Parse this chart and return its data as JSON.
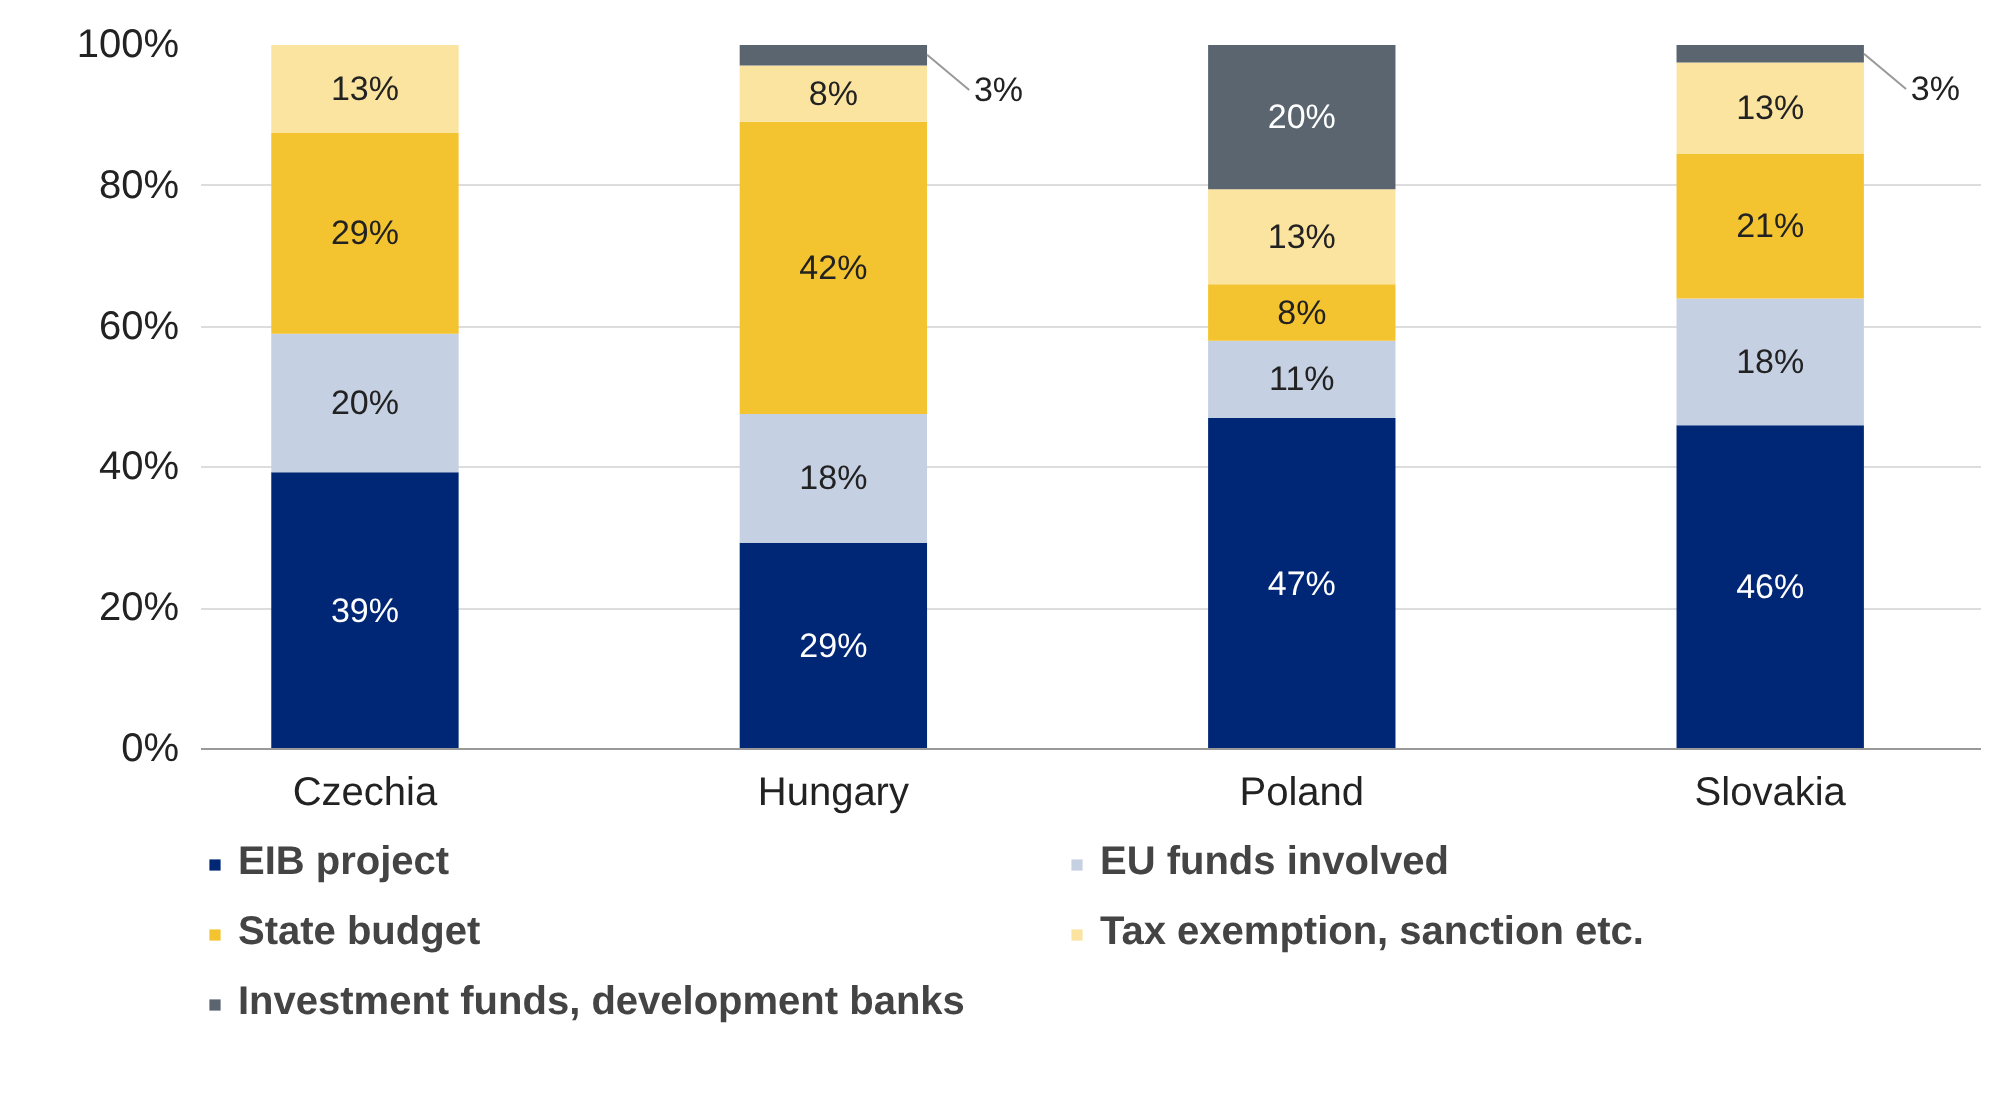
{
  "chart_data": {
    "type": "bar",
    "stacked": true,
    "categories": [
      "Czechia",
      "Hungary",
      "Poland",
      "Slovakia"
    ],
    "series": [
      {
        "name": "EIB project",
        "color": "#002776",
        "values": [
          39.3,
          29.3,
          47,
          46
        ],
        "value_labels": [
          "39%",
          "29%",
          "47%",
          "46%"
        ]
      },
      {
        "name": "EU funds involved",
        "color": "#c5d0e3",
        "values": [
          19.7,
          18.3,
          11,
          18
        ],
        "value_labels": [
          "20%",
          "18%",
          "11%",
          "18%"
        ]
      },
      {
        "name": "State budget",
        "color": "#f4c430",
        "values": [
          28.5,
          41.5,
          8,
          20.5
        ],
        "value_labels": [
          "29%",
          "42%",
          "8%",
          "21%"
        ]
      },
      {
        "name": "Tax exemption, sanction etc.",
        "color": "#fbe3a0",
        "values": [
          12.5,
          8,
          13.5,
          13
        ],
        "value_labels": [
          "13%",
          "8%",
          "13%",
          "13%"
        ]
      },
      {
        "name": "Investment funds, development banks",
        "color": "#5a6570",
        "values": [
          null,
          3,
          20.5,
          2.5
        ],
        "value_labels": [
          null,
          "3%",
          "20%",
          "3%"
        ]
      }
    ],
    "ylim": [
      0,
      100
    ],
    "yticks": [
      {
        "value": 0,
        "label": "0%"
      },
      {
        "value": 20,
        "label": "20%"
      },
      {
        "value": 40,
        "label": "40%"
      },
      {
        "value": 60,
        "label": "60%"
      },
      {
        "value": 80,
        "label": "80%"
      },
      {
        "value": 100,
        "label": "100%"
      }
    ],
    "grid": "y",
    "legend": "bottom"
  }
}
